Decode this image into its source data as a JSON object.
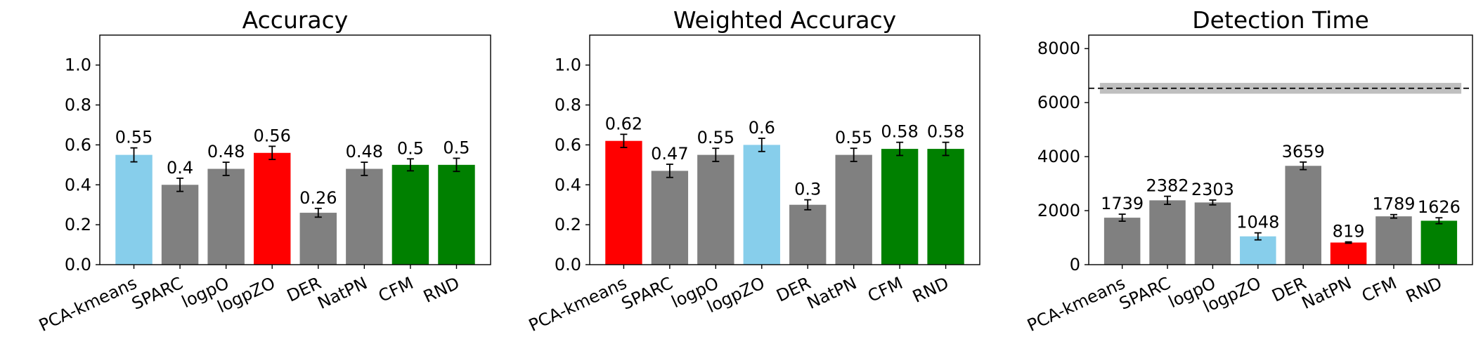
{
  "colors": {
    "gray": "#808080",
    "lightblue": "#87CEEB",
    "red": "#FF0000",
    "green": "#008000",
    "band": "#BFBFBF"
  },
  "chart_data": [
    {
      "type": "bar",
      "title": "Accuracy",
      "categories": [
        "PCA-kmeans",
        "SPARC",
        "logpO",
        "logpZO",
        "DER",
        "NatPN",
        "CFM",
        "RND"
      ],
      "values": [
        0.55,
        0.4,
        0.48,
        0.56,
        0.26,
        0.48,
        0.5,
        0.5
      ],
      "value_labels": [
        "0.55",
        "0.4",
        "0.48",
        "0.56",
        "0.26",
        "0.48",
        "0.5",
        "0.5"
      ],
      "errors": [
        0.035,
        0.033,
        0.033,
        0.033,
        0.022,
        0.033,
        0.03,
        0.033
      ],
      "bar_colors": [
        "lightblue",
        "gray",
        "gray",
        "red",
        "gray",
        "gray",
        "green",
        "green"
      ],
      "ylim": [
        0,
        1.15
      ],
      "yticks": [
        0.0,
        0.2,
        0.4,
        0.6,
        0.8,
        1.0
      ],
      "ytick_labels": [
        "0.0",
        "0.2",
        "0.4",
        "0.6",
        "0.8",
        "1.0"
      ],
      "xlabel": "",
      "ylabel": "",
      "grid": false
    },
    {
      "type": "bar",
      "title": "Weighted Accuracy",
      "categories": [
        "PCA-kmeans",
        "SPARC",
        "logpO",
        "logpZO",
        "DER",
        "NatPN",
        "CFM",
        "RND"
      ],
      "values": [
        0.62,
        0.47,
        0.55,
        0.6,
        0.3,
        0.55,
        0.58,
        0.58
      ],
      "value_labels": [
        "0.62",
        "0.47",
        "0.55",
        "0.6",
        "0.3",
        "0.55",
        "0.58",
        "0.58"
      ],
      "errors": [
        0.033,
        0.033,
        0.033,
        0.033,
        0.025,
        0.033,
        0.033,
        0.033
      ],
      "bar_colors": [
        "red",
        "gray",
        "gray",
        "lightblue",
        "gray",
        "gray",
        "green",
        "green"
      ],
      "ylim": [
        0,
        1.15
      ],
      "yticks": [
        0.0,
        0.2,
        0.4,
        0.6,
        0.8,
        1.0
      ],
      "ytick_labels": [
        "0.0",
        "0.2",
        "0.4",
        "0.6",
        "0.8",
        "1.0"
      ],
      "xlabel": "",
      "ylabel": "",
      "grid": false
    },
    {
      "type": "bar",
      "title": "Detection Time",
      "categories": [
        "PCA-kmeans",
        "SPARC",
        "logpO",
        "logpZO",
        "DER",
        "NatPN",
        "CFM",
        "RND"
      ],
      "values": [
        1739,
        2382,
        2303,
        1048,
        3659,
        819,
        1789,
        1626
      ],
      "value_labels": [
        "1739",
        "2382",
        "2303",
        "1048",
        "3659",
        "819",
        "1789",
        "1626"
      ],
      "errors": [
        130,
        150,
        90,
        130,
        140,
        25,
        65,
        110
      ],
      "bar_colors": [
        "gray",
        "gray",
        "gray",
        "lightblue",
        "gray",
        "red",
        "gray",
        "green"
      ],
      "ylim": [
        0,
        8500
      ],
      "yticks": [
        0,
        2000,
        4000,
        6000,
        8000
      ],
      "ytick_labels": [
        "0",
        "2000",
        "4000",
        "6000",
        "8000"
      ],
      "reference_line": {
        "value": 6530,
        "band": [
          6330,
          6730
        ],
        "style": "dashed"
      },
      "xlabel": "",
      "ylabel": "",
      "grid": false
    }
  ]
}
